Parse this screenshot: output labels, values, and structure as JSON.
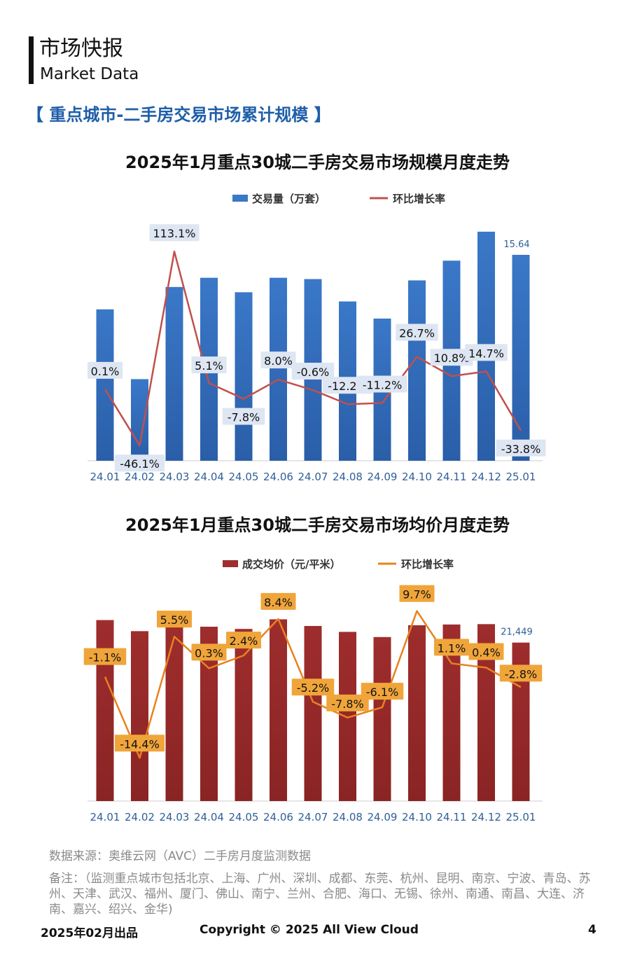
{
  "header": {
    "title_cn": "市场快报",
    "title_en": "Market Data"
  },
  "section_title": "【 重点城市-二手房交易市场累计规模 】",
  "chart_data": [
    {
      "type": "bar",
      "title": "2025年1月重点30城二手房交易市场规模月度走势",
      "categories": [
        "24.01",
        "24.02",
        "24.03",
        "24.04",
        "24.05",
        "24.06",
        "24.07",
        "24.08",
        "24.09",
        "24.10",
        "24.11",
        "24.12",
        "25.01"
      ],
      "series": [
        {
          "name": "交易量（万套）",
          "type": "bar",
          "color": "#3a78c8",
          "values": [
            11.5,
            6.2,
            13.2,
            13.9,
            12.8,
            13.9,
            13.8,
            12.1,
            10.8,
            13.7,
            15.2,
            17.4,
            15.64
          ]
        },
        {
          "name": "环比增长率",
          "type": "line",
          "color": "#c0504d",
          "values": [
            0.1,
            -46.1,
            113.1,
            5.1,
            -7.8,
            8.0,
            -0.6,
            -12.2,
            -11.2,
            26.7,
            10.8,
            14.7,
            -33.8
          ],
          "labels": [
            "0.1%",
            "-46.1%",
            "113.1%",
            "5.1%",
            "-7.8%",
            "8.0%",
            "-0.6%",
            "-12.2%",
            "-11.2%",
            "26.7%",
            "10.8%",
            "14.7%",
            "-33.8%"
          ]
        }
      ],
      "value_label": "15.64",
      "legend": "top"
    },
    {
      "type": "bar",
      "title": "2025年1月重点30城二手房交易市场均价月度走势",
      "categories": [
        "24.01",
        "24.02",
        "24.03",
        "24.04",
        "24.05",
        "24.06",
        "24.07",
        "24.08",
        "24.09",
        "24.10",
        "24.11",
        "24.12",
        "25.01"
      ],
      "series": [
        {
          "name": "成交均价（元/平米）",
          "type": "bar",
          "color": "#9e2d2d",
          "values": [
            24500,
            23000,
            23700,
            23600,
            23300,
            24600,
            23700,
            22900,
            22200,
            23800,
            23900,
            23950,
            21449
          ]
        },
        {
          "name": "环比增长率",
          "type": "line",
          "color": "#e8821e",
          "values": [
            -1.1,
            -14.4,
            5.5,
            0.3,
            2.4,
            8.4,
            -5.2,
            -7.8,
            -6.1,
            9.7,
            1.1,
            0.4,
            -2.8
          ],
          "labels": [
            "-1.1%",
            "-14.4%",
            "5.5%",
            "0.3%",
            "2.4%",
            "8.4%",
            "-5.2%",
            "-7.8%",
            "-6.1%",
            "9.7%",
            "1.1%",
            "0.4%",
            "-2.8%"
          ]
        }
      ],
      "value_label": "21,449",
      "legend": "top"
    }
  ],
  "footnotes": {
    "source": "数据来源：奥维云网（AVC）二手房月度监测数据",
    "note": "备注：（监测重点城市包括北京、上海、广州、深圳、成都、东莞、杭州、昆明、南京、宁波、青岛、苏州、天津、武汉、福州、厦门、佛山、南宁、兰州、合肥、海口、无锡、徐州、南通、南昌、大连、济南、嘉兴、绍兴、金华)"
  },
  "footer": {
    "date": "2025年02月出品",
    "copyright": "Copyright © 2025  All View Cloud",
    "page": "4"
  }
}
